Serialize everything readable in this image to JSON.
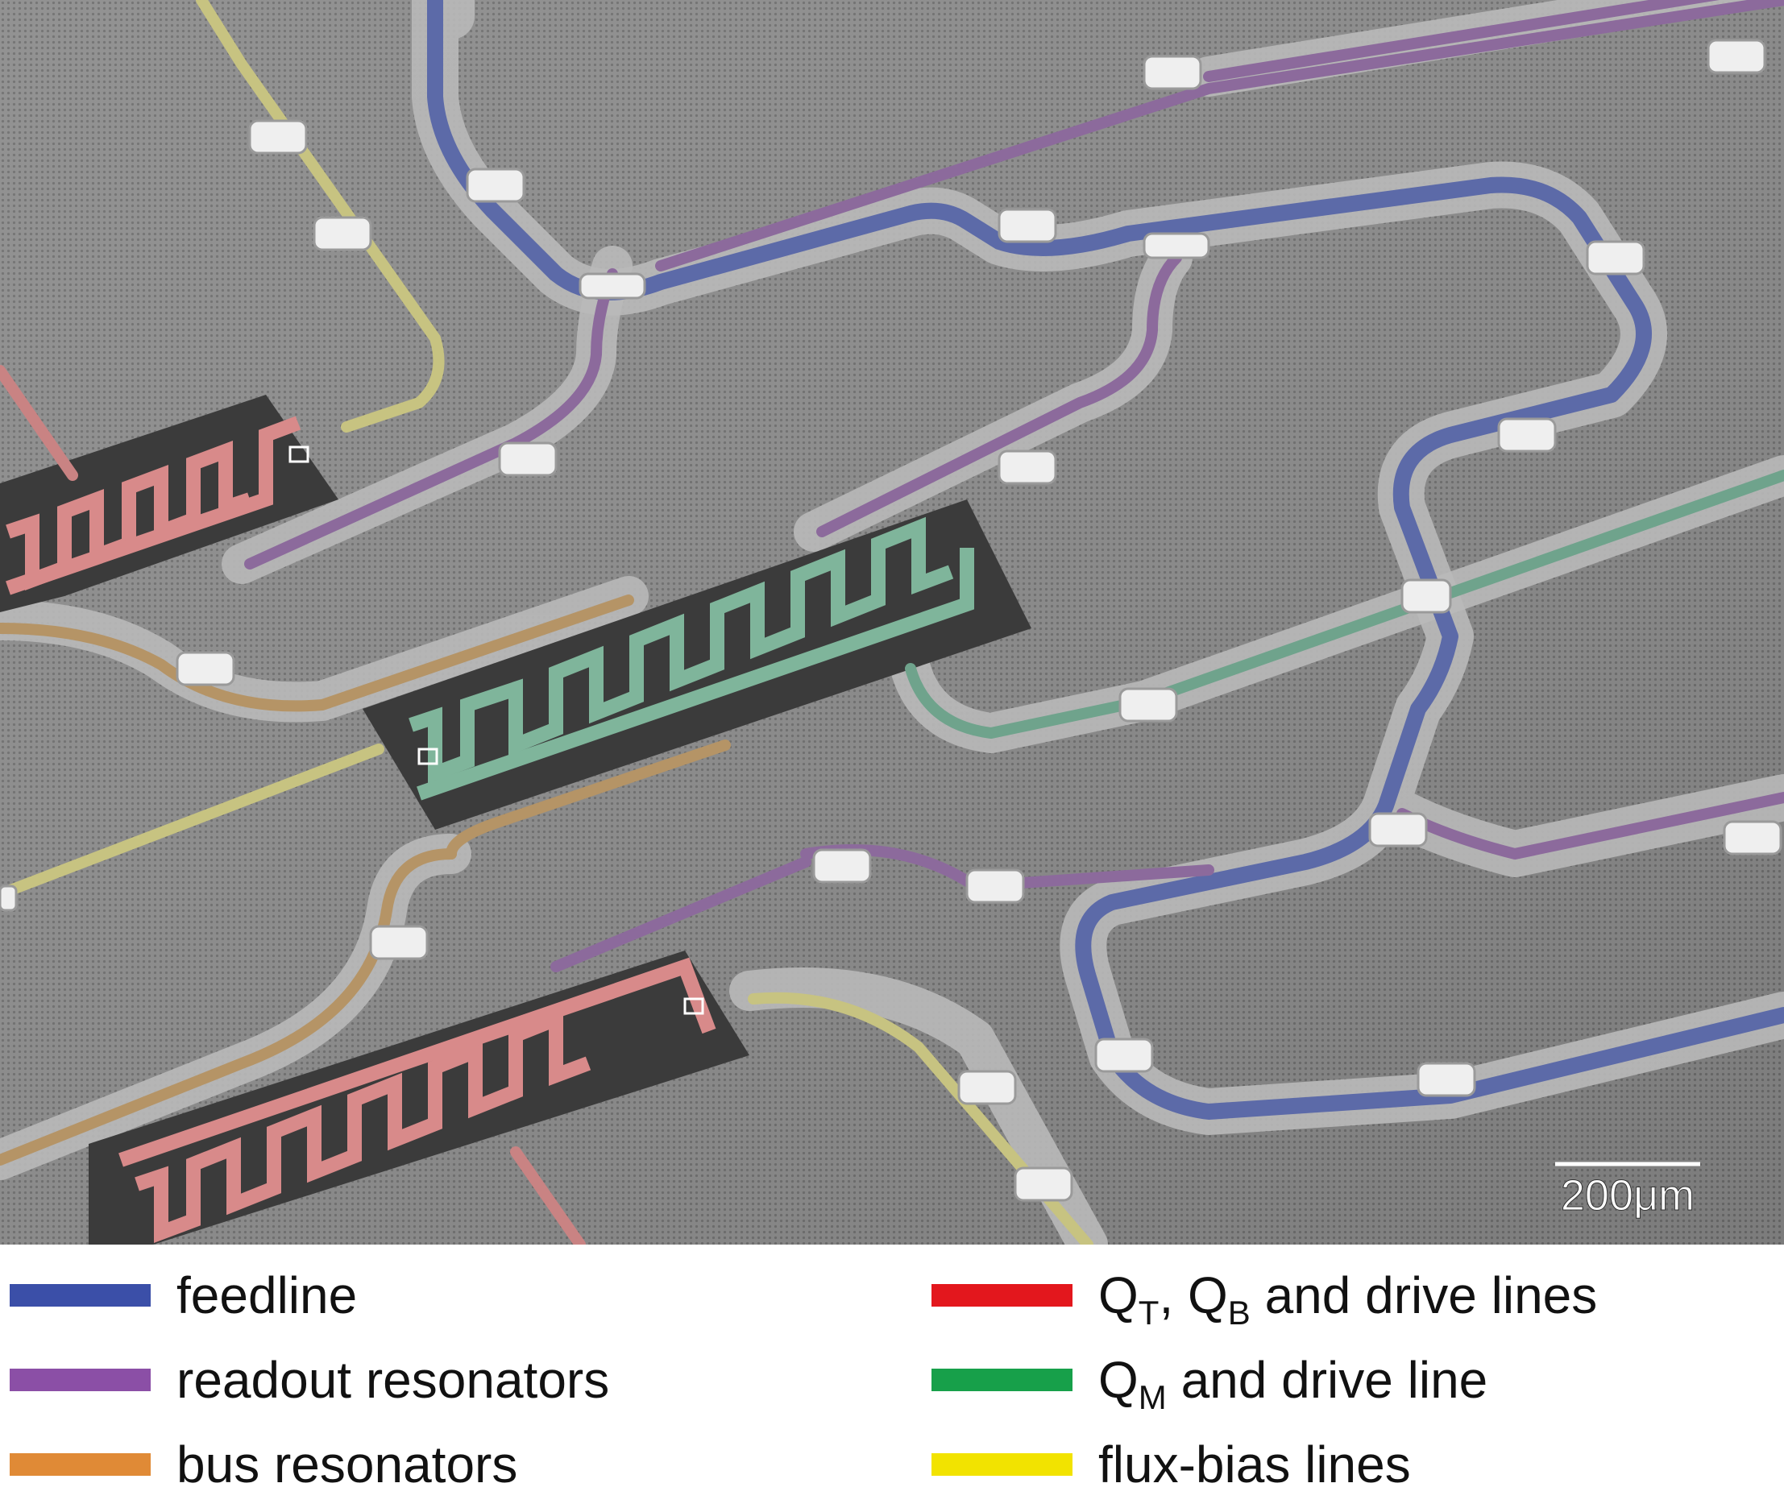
{
  "figure": {
    "scale_bar": {
      "label": "200μm"
    }
  },
  "legend": {
    "items": [
      {
        "text": "feedline",
        "color": "#3b4fa8"
      },
      {
        "text": "readout resonators",
        "color": "#8b4fa6"
      },
      {
        "text": "bus resonators",
        "color": "#e08a36"
      },
      {
        "q": "Q",
        "sub1": "T",
        "sep": ", Q",
        "sub2": "B",
        "rest": " and drive lines",
        "color": "#e3171d"
      },
      {
        "q": "Q",
        "sub1": "M",
        "rest": " and drive line",
        "color": "#17a04a"
      },
      {
        "text": "flux-bias lines",
        "color": "#f2e300"
      }
    ]
  }
}
